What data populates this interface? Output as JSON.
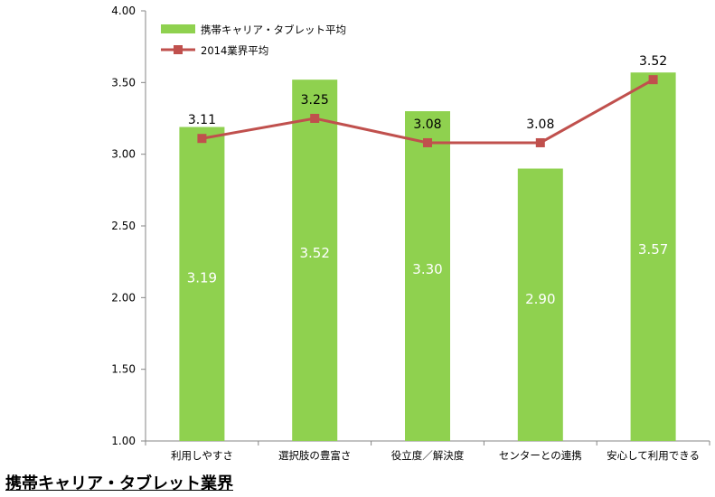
{
  "caption": "携帯キャリア・タブレット業界",
  "chart_data": {
    "type": "bar",
    "categories": [
      "利用しやすさ",
      "選択肢の豊富さ",
      "役立度／解決度",
      "センターとの連携",
      "安心して利用できる"
    ],
    "ylim": [
      1.0,
      4.0
    ],
    "yticks": [
      "1.00",
      "1.50",
      "2.00",
      "2.50",
      "3.00",
      "3.50",
      "4.00"
    ],
    "series": [
      {
        "name": "携帯キャリア・タブレット平均",
        "type": "bar",
        "color": "#8fd14f",
        "values": [
          3.19,
          3.52,
          3.3,
          2.9,
          3.57
        ],
        "labels": [
          "3.19",
          "3.52",
          "3.30",
          "2.90",
          "3.57"
        ]
      },
      {
        "name": "2014業界平均",
        "type": "line",
        "color": "#c0504d",
        "values": [
          3.11,
          3.25,
          3.08,
          3.08,
          3.52
        ],
        "labels": [
          "3.11",
          "3.25",
          "3.08",
          "3.08",
          "3.52"
        ]
      }
    ],
    "legend_position": "top-left",
    "grid": false
  }
}
